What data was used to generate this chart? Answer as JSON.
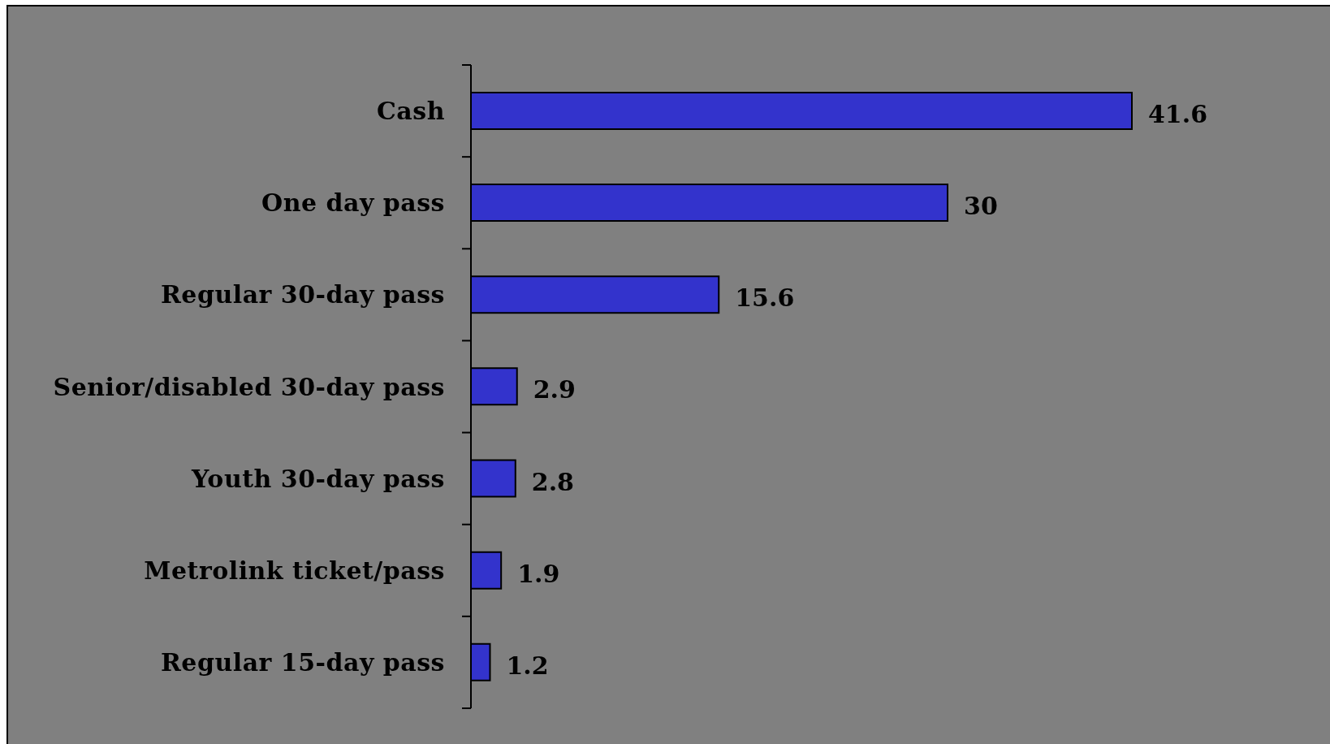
{
  "chart_data": {
    "type": "bar",
    "orientation": "horizontal",
    "categories": [
      "Cash",
      "One day pass",
      "Regular 30-day pass",
      "Senior/disabled 30-day pass",
      "Youth 30-day pass",
      "Metrolink ticket/pass",
      "Regular 15-day pass"
    ],
    "values": [
      41.6,
      30,
      15.6,
      2.9,
      2.8,
      1.9,
      1.2
    ],
    "color": "#3333cc",
    "data_labels": true
  }
}
